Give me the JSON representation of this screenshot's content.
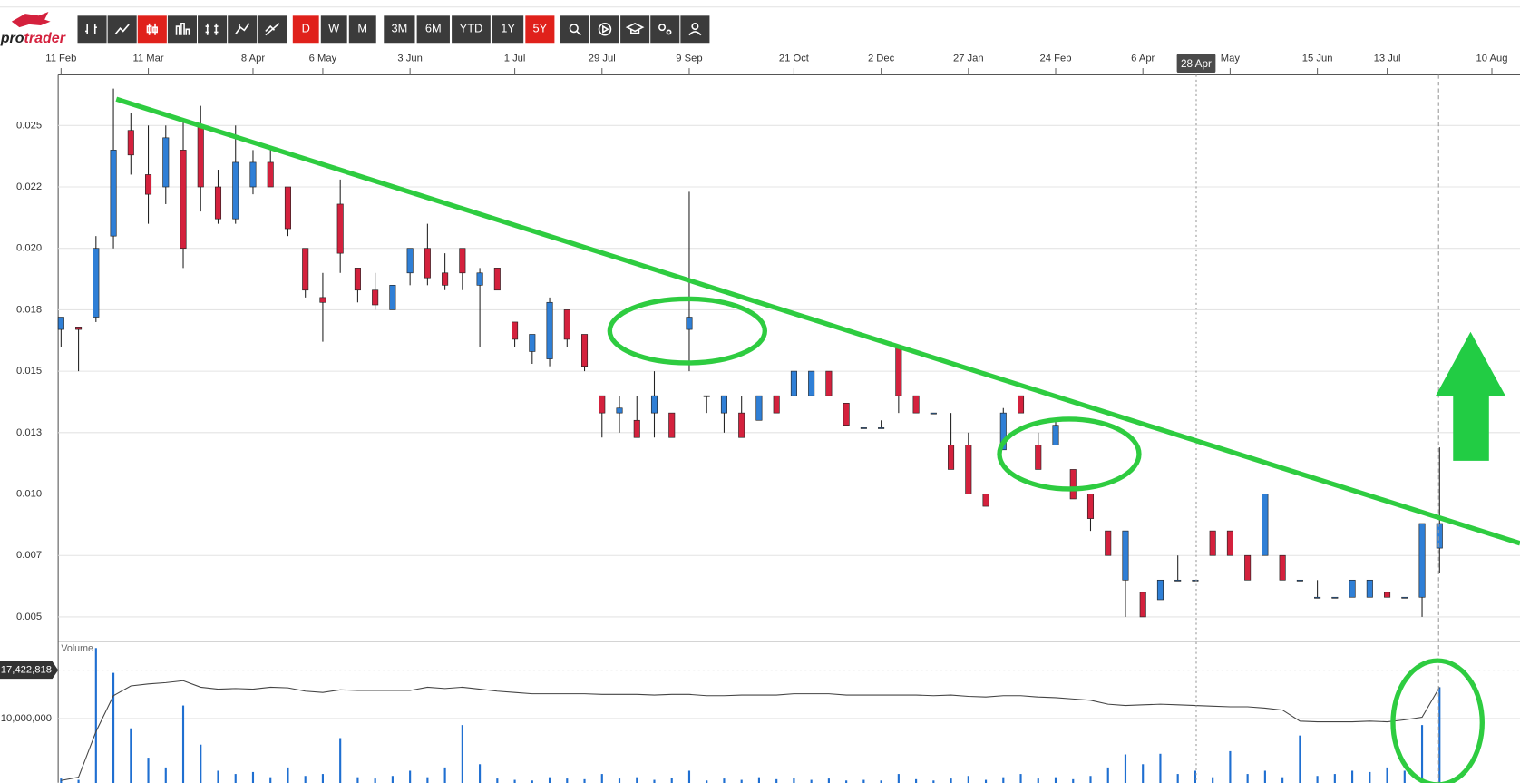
{
  "app": {
    "logo": [
      "pro",
      "trader"
    ],
    "intervals": [
      "D",
      "W",
      "M"
    ],
    "ranges": [
      "3M",
      "6M",
      "YTD",
      "1Y",
      "5Y"
    ]
  },
  "chart_data": {
    "type": "candlestick",
    "categories": [
      "11 Feb",
      null,
      null,
      null,
      null,
      "11 Mar",
      null,
      null,
      null,
      null,
      null,
      "8 Apr",
      null,
      null,
      null,
      "6 May",
      null,
      null,
      null,
      null,
      "3 Jun",
      null,
      null,
      null,
      null,
      null,
      "1 Jul",
      null,
      null,
      null,
      null,
      "29 Jul",
      null,
      null,
      null,
      null,
      "9 Sep",
      null,
      null,
      null,
      null,
      null,
      "21 Oct",
      null,
      null,
      null,
      null,
      "2 Dec",
      null,
      null,
      null,
      null,
      "27 Jan",
      null,
      null,
      null,
      null,
      "24 Feb",
      null,
      null,
      null,
      null,
      "6 Apr",
      null,
      null,
      null,
      null,
      "May",
      null,
      null,
      null,
      null,
      "15 Jun",
      null,
      null,
      null,
      "13 Jul",
      null,
      null,
      null,
      null,
      null,
      "10 Aug"
    ],
    "open": [
      0.0167,
      0.0168,
      0.0172,
      0.0205,
      0.0248,
      0.023,
      0.0225,
      0.024,
      0.025,
      0.0225,
      0.0212,
      0.0225,
      0.0235,
      0.0225,
      0.02,
      0.018,
      0.0218,
      0.0192,
      0.0183,
      0.0175,
      0.019,
      0.02,
      0.019,
      0.02,
      0.0185,
      0.0192,
      0.017,
      0.0158,
      0.0155,
      0.0175,
      0.0165,
      0.014,
      0.0133,
      0.013,
      0.0133,
      0.0133,
      0.0167,
      0.014,
      0.0133,
      0.0133,
      0.013,
      0.014,
      0.014,
      0.014,
      0.015,
      0.0137,
      0.0127,
      0.0127,
      0.016,
      0.014,
      0.0133,
      0.012,
      0.012,
      0.01,
      0.0118,
      0.014,
      0.012,
      0.012,
      0.011,
      0.01,
      0.0085,
      0.0065,
      0.006,
      0.0057,
      0.0065,
      0.0065,
      0.0085,
      0.0085,
      0.0075,
      0.0075,
      0.0075,
      0.0065,
      0.0058,
      0.0058,
      0.0058,
      0.0058,
      0.006,
      0.0058,
      0.0058,
      0.0078,
      null,
      null,
      null
    ],
    "high": [
      0.0172,
      0.0168,
      0.0205,
      0.0265,
      0.0255,
      0.025,
      0.025,
      0.0252,
      0.0258,
      0.0232,
      0.025,
      0.024,
      0.024,
      0.0225,
      0.02,
      0.019,
      0.0228,
      0.0192,
      0.019,
      0.0185,
      0.02,
      0.021,
      0.0198,
      0.02,
      0.0192,
      0.0192,
      0.017,
      0.0165,
      0.018,
      0.0175,
      0.0165,
      0.014,
      0.014,
      0.014,
      0.015,
      0.0133,
      0.0223,
      0.014,
      0.014,
      0.014,
      0.014,
      0.014,
      0.015,
      0.015,
      0.015,
      0.0137,
      0.0127,
      0.013,
      0.016,
      0.014,
      0.0133,
      0.0133,
      0.0125,
      0.01,
      0.0135,
      0.014,
      0.0125,
      0.013,
      0.011,
      0.01,
      0.0085,
      0.0085,
      0.006,
      0.0065,
      0.0075,
      0.0065,
      0.0085,
      0.0085,
      0.0075,
      0.01,
      0.0075,
      0.0065,
      0.0065,
      0.0058,
      0.0065,
      0.0065,
      0.006,
      0.0058,
      0.0088,
      0.0119,
      null,
      null,
      null
    ],
    "low": [
      0.016,
      0.015,
      0.017,
      0.02,
      0.023,
      0.021,
      0.0218,
      0.0192,
      0.0215,
      0.021,
      0.021,
      0.0222,
      0.0225,
      0.0205,
      0.018,
      0.0162,
      0.019,
      0.0178,
      0.0175,
      0.0175,
      0.0185,
      0.0185,
      0.0183,
      0.0183,
      0.016,
      0.0183,
      0.016,
      0.0153,
      0.0152,
      0.016,
      0.015,
      0.0123,
      0.0125,
      0.0123,
      0.0123,
      0.0123,
      0.015,
      0.0133,
      0.0125,
      0.0123,
      0.013,
      0.0133,
      0.014,
      0.014,
      0.014,
      0.0128,
      0.0127,
      0.0127,
      0.0133,
      0.0133,
      0.0133,
      0.011,
      0.01,
      0.0095,
      0.0118,
      0.0133,
      0.011,
      0.012,
      0.0098,
      0.0085,
      0.0075,
      0.005,
      0.005,
      0.0057,
      0.0065,
      0.0065,
      0.0075,
      0.0075,
      0.0065,
      0.0075,
      0.0065,
      0.0065,
      0.0058,
      0.0058,
      0.0058,
      0.0058,
      0.0058,
      0.0058,
      0.005,
      0.0068,
      null,
      null,
      null
    ],
    "close": [
      0.0172,
      0.0167,
      0.02,
      0.024,
      0.0238,
      0.0222,
      0.0245,
      0.02,
      0.0225,
      0.0212,
      0.0235,
      0.0235,
      0.0225,
      0.0208,
      0.0183,
      0.0178,
      0.0198,
      0.0183,
      0.0177,
      0.0185,
      0.02,
      0.0188,
      0.0185,
      0.019,
      0.019,
      0.0183,
      0.0163,
      0.0165,
      0.0178,
      0.0163,
      0.0152,
      0.0133,
      0.0135,
      0.0123,
      0.014,
      0.0123,
      0.0172,
      0.014,
      0.014,
      0.0123,
      0.014,
      0.0133,
      0.015,
      0.015,
      0.014,
      0.0128,
      0.0127,
      0.0127,
      0.014,
      0.0133,
      0.0133,
      0.011,
      0.01,
      0.0095,
      0.0133,
      0.0133,
      0.011,
      0.0128,
      0.0098,
      0.009,
      0.0075,
      0.0085,
      0.005,
      0.0065,
      0.0065,
      0.0065,
      0.0075,
      0.0075,
      0.0065,
      0.01,
      0.0065,
      0.0065,
      0.0058,
      0.0058,
      0.0065,
      0.0065,
      0.0058,
      0.0058,
      0.0088,
      0.0088,
      null,
      null,
      null
    ],
    "up_color": "#2f7fd6",
    "down_color": "#d4213d",
    "ylim": [
      0.00401,
      0.02706
    ],
    "yticks": [
      0.005,
      {
        "value": 0.0075,
        "label": "0.007"
      },
      {
        "value": 0.01,
        "label": "0.010"
      },
      {
        "value": 0.0125,
        "label": "0.013"
      },
      0.015,
      {
        "value": 0.0175,
        "label": "0.018"
      },
      {
        "value": 0.02,
        "label": "0.020"
      },
      {
        "value": 0.0225,
        "label": "0.022"
      },
      0.025
    ],
    "grid": true,
    "crosshair_label": "28 Apr",
    "volume": {
      "title": "Volume",
      "color": "#1f6fd1",
      "line_color": "#444444",
      "values": [
        800000,
        600000,
        20800000,
        17000000,
        8500000,
        4000000,
        2500000,
        12000000,
        6000000,
        2000000,
        1500000,
        1800000,
        1000000,
        2500000,
        1200000,
        1500000,
        7000000,
        1000000,
        800000,
        1200000,
        2000000,
        1000000,
        2500000,
        9000000,
        3000000,
        800000,
        600000,
        500000,
        1000000,
        800000,
        700000,
        1500000,
        800000,
        1000000,
        600000,
        900000,
        2000000,
        500000,
        800000,
        600000,
        1000000,
        700000,
        900000,
        600000,
        800000,
        500000,
        600000,
        500000,
        1500000,
        700000,
        500000,
        800000,
        1200000,
        600000,
        1000000,
        1500000,
        800000,
        1000000,
        700000,
        1200000,
        2500000,
        4500000,
        3000000,
        4600000,
        1500000,
        2000000,
        1000000,
        5000000,
        1500000,
        2000000,
        1000000,
        7400000,
        1200000,
        1500000,
        2000000,
        1800000,
        2500000,
        2000000,
        9000000,
        14800000,
        null,
        null,
        null
      ],
      "ma": [
        500000,
        1000000,
        8000000,
        13500000,
        15000000,
        15300000,
        15500000,
        15800000,
        14800000,
        14500000,
        14600000,
        14500000,
        14800000,
        14700000,
        14200000,
        14000000,
        14400000,
        14300000,
        14300000,
        14300000,
        14300000,
        14800000,
        14600000,
        14800000,
        14500000,
        14200000,
        14000000,
        13800000,
        13800000,
        13800000,
        13800000,
        13700000,
        13700000,
        13700000,
        13600000,
        13700000,
        13700000,
        13500000,
        13500000,
        13600000,
        13600000,
        13600000,
        13800000,
        13800000,
        13800000,
        13600000,
        13600000,
        13600000,
        13600000,
        13600000,
        13500000,
        13600000,
        13400000,
        13300000,
        13500000,
        13500000,
        13300000,
        13200000,
        13000000,
        12800000,
        12200000,
        12000000,
        12100000,
        12200000,
        12100000,
        12000000,
        11900000,
        11800000,
        11800000,
        11600000,
        11300000,
        9600000,
        9500000,
        9500000,
        9500000,
        9600000,
        9500000,
        9800000,
        10200000,
        14800000,
        null,
        null,
        null
      ],
      "ylim": [
        0,
        21700000
      ],
      "yticks": [
        {
          "value": 10000000,
          "label": "10,000,000"
        },
        {
          "value": 17422818,
          "label": "17,422,818"
        }
      ]
    }
  }
}
